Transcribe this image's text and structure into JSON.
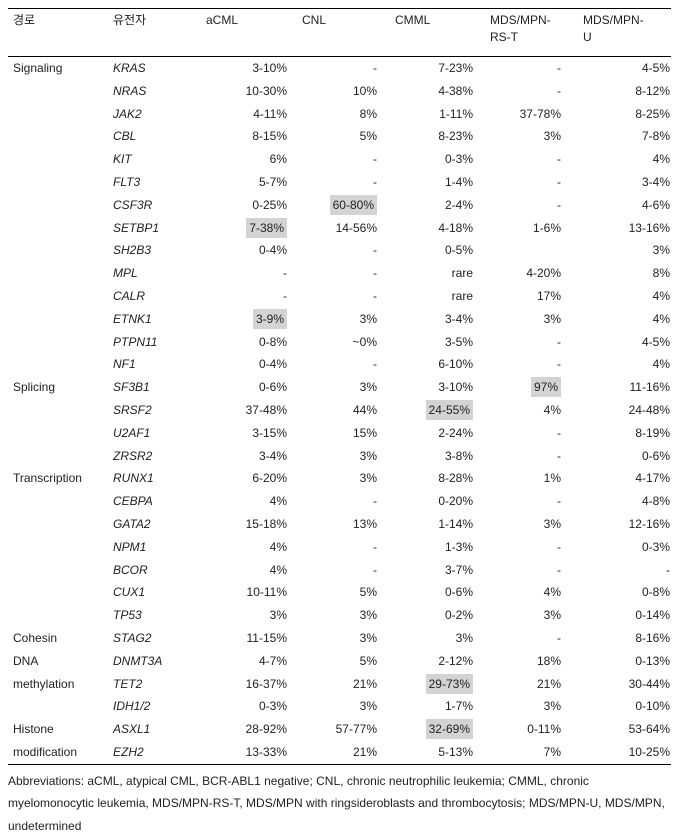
{
  "colors": {
    "highlight_bg": "#d3d3d3",
    "text": "#1f1f1f",
    "border": "#000000",
    "background": "#ffffff"
  },
  "table": {
    "columns": [
      {
        "label": "경로"
      },
      {
        "label": "유전자"
      },
      {
        "label": "aCML"
      },
      {
        "label": "CNL"
      },
      {
        "label": "CMML"
      },
      {
        "label": "MDS/MPN-",
        "label2": "RS-T"
      },
      {
        "label": "MDS/MPN-",
        "label2": "U"
      }
    ],
    "rows": [
      {
        "pathway": "Signaling",
        "gene": "KRAS",
        "values": [
          "3-10%",
          "-",
          "7-23%",
          "-",
          "4-5%"
        ],
        "highlight": null
      },
      {
        "pathway": "",
        "gene": "NRAS",
        "values": [
          "10-30%",
          "10%",
          "4-38%",
          "-",
          "8-12%"
        ],
        "highlight": null
      },
      {
        "pathway": "",
        "gene": "JAK2",
        "values": [
          "4-11%",
          "8%",
          "1-11%",
          "37-78%",
          "8-25%"
        ],
        "highlight": null
      },
      {
        "pathway": "",
        "gene": "CBL",
        "values": [
          "8-15%",
          "5%",
          "8-23%",
          "3%",
          "7-8%"
        ],
        "highlight": null
      },
      {
        "pathway": "",
        "gene": "KIT",
        "values": [
          "6%",
          "-",
          "0-3%",
          "-",
          "4%"
        ],
        "highlight": null
      },
      {
        "pathway": "",
        "gene": "FLT3",
        "values": [
          "5-7%",
          "-",
          "1-4%",
          "-",
          "3-4%"
        ],
        "highlight": null
      },
      {
        "pathway": "",
        "gene": "CSF3R",
        "values": [
          "0-25%",
          "60-80%",
          "2-4%",
          "-",
          "4-6%"
        ],
        "highlight": 1
      },
      {
        "pathway": "",
        "gene": "SETBP1",
        "values": [
          "7-38%",
          "14-56%",
          "4-18%",
          "1-6%",
          "13-16%"
        ],
        "highlight": 0
      },
      {
        "pathway": "",
        "gene": "SH2B3",
        "values": [
          "0-4%",
          "-",
          "0-5%",
          "",
          "3%"
        ],
        "highlight": null
      },
      {
        "pathway": "",
        "gene": "MPL",
        "values": [
          "-",
          "-",
          "rare",
          "4-20%",
          "8%"
        ],
        "highlight": null
      },
      {
        "pathway": "",
        "gene": "CALR",
        "values": [
          "-",
          "-",
          "rare",
          "17%",
          "4%"
        ],
        "highlight": null
      },
      {
        "pathway": "",
        "gene": "ETNK1",
        "values": [
          "3-9%",
          "3%",
          "3-4%",
          "3%",
          "4%"
        ],
        "highlight": 0
      },
      {
        "pathway": "",
        "gene": "PTPN11",
        "values": [
          "0-8%",
          "~0%",
          "3-5%",
          "-",
          "4-5%"
        ],
        "highlight": null
      },
      {
        "pathway": "",
        "gene": "NF1",
        "values": [
          "0-4%",
          "-",
          "6-10%",
          "-",
          "4%"
        ],
        "highlight": null
      },
      {
        "pathway": "Splicing",
        "gene": "SF3B1",
        "values": [
          "0-6%",
          "3%",
          "3-10%",
          "97%",
          "11-16%"
        ],
        "highlight": 3
      },
      {
        "pathway": "",
        "gene": "SRSF2",
        "values": [
          "37-48%",
          "44%",
          "24-55%",
          "4%",
          "24-48%"
        ],
        "highlight": 2
      },
      {
        "pathway": "",
        "gene": "U2AF1",
        "values": [
          "3-15%",
          "15%",
          "2-24%",
          "-",
          "8-19%"
        ],
        "highlight": null
      },
      {
        "pathway": "",
        "gene": "ZRSR2",
        "values": [
          "3-4%",
          "3%",
          "3-8%",
          "-",
          "0-6%"
        ],
        "highlight": null
      },
      {
        "pathway": "Transcription",
        "gene": "RUNX1",
        "values": [
          "6-20%",
          "3%",
          "8-28%",
          "1%",
          "4-17%"
        ],
        "highlight": null
      },
      {
        "pathway": "",
        "gene": "CEBPA",
        "values": [
          "4%",
          "-",
          "0-20%",
          "-",
          "4-8%"
        ],
        "highlight": null
      },
      {
        "pathway": "",
        "gene": "GATA2",
        "values": [
          "15-18%",
          "13%",
          "1-14%",
          "3%",
          "12-16%"
        ],
        "highlight": null
      },
      {
        "pathway": "",
        "gene": "NPM1",
        "values": [
          "4%",
          "-",
          "1-3%",
          "-",
          "0-3%"
        ],
        "highlight": null
      },
      {
        "pathway": "",
        "gene": "BCOR",
        "values": [
          "4%",
          "-",
          "3-7%",
          "-",
          "-"
        ],
        "highlight": null
      },
      {
        "pathway": "",
        "gene": "CUX1",
        "values": [
          "10-11%",
          "5%",
          "0-6%",
          "4%",
          "0-8%"
        ],
        "highlight": null
      },
      {
        "pathway": "",
        "gene": "TP53",
        "values": [
          "3%",
          "3%",
          "0-2%",
          "3%",
          "0-14%"
        ],
        "highlight": null
      },
      {
        "pathway": "Cohesin",
        "gene": "STAG2",
        "values": [
          "11-15%",
          "3%",
          "3%",
          "-",
          "8-16%"
        ],
        "highlight": null
      },
      {
        "pathway": "DNA",
        "gene": "DNMT3A",
        "values": [
          "4-7%",
          "5%",
          "2-12%",
          "18%",
          "0-13%"
        ],
        "highlight": null
      },
      {
        "pathway": "methylation",
        "gene": "TET2",
        "values": [
          "16-37%",
          "21%",
          "29-73%",
          "21%",
          "30-44%"
        ],
        "highlight": 2
      },
      {
        "pathway": "",
        "gene": "IDH1/2",
        "values": [
          "0-3%",
          "3%",
          "1-7%",
          "3%",
          "0-10%"
        ],
        "highlight": null
      },
      {
        "pathway": "Histone",
        "gene": "ASXL1",
        "values": [
          "28-92%",
          "57-77%",
          "32-69%",
          "0-11%",
          "53-64%"
        ],
        "highlight": 2
      },
      {
        "pathway": "modification",
        "gene": "EZH2",
        "values": [
          "13-33%",
          "21%",
          "5-13%",
          "7%",
          "10-25%"
        ],
        "highlight": null
      }
    ]
  },
  "footnote": {
    "lines": [
      "Abbreviations: aCML, atypical CML, BCR-ABL1 negative; CNL, chronic neutrophilic leukemia; CMML, chronic",
      "myelomonocytic leukemia, MDS/MPN-RS-T, MDS/MPN with ringsideroblasts and thrombocytosis; MDS/MPN-U, MDS/MPN,",
      "undetermined"
    ]
  }
}
